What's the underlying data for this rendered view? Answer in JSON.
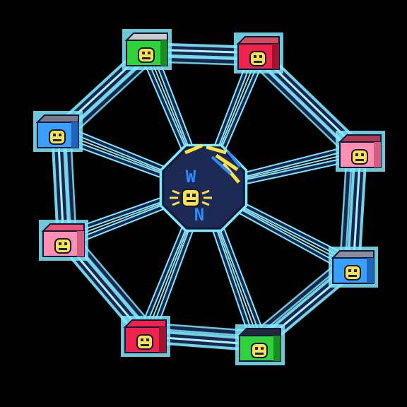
{
  "game": {
    "title": "",
    "hub": {
      "letters": [
        "W",
        "N"
      ],
      "hub_color": "#1c2a55",
      "letter_color": "#2f8cff",
      "accent_color": "#ffe14a",
      "glow_color": "#7feaff"
    },
    "palette": {
      "background": "#000000",
      "frame_glow": "#7feaff",
      "frame_core": "#1a2550",
      "spoke_light": "#aef4ff",
      "outline": "#0f1838"
    },
    "gondolas": [
      {
        "id": "gondola-top-left",
        "color": "#2fd23a",
        "shade": "#1a8c24",
        "top": "#c9c9c9"
      },
      {
        "id": "gondola-top-right",
        "color": "#f0234d",
        "shade": "#a0142f",
        "top": "#d64b5a"
      },
      {
        "id": "gondola-right-upper",
        "color": "#ff8fb0",
        "shade": "#d45c82",
        "top": "#b03a58"
      },
      {
        "id": "gondola-right-lower",
        "color": "#3aa0ff",
        "shade": "#1f64b8",
        "top": "#8c8ca0"
      },
      {
        "id": "gondola-bottom-right",
        "color": "#2fd23a",
        "shade": "#1a8c24",
        "top": "#1e2a3c"
      },
      {
        "id": "gondola-bottom-left",
        "color": "#f0234d",
        "shade": "#a0142f",
        "top": "#f0234d"
      },
      {
        "id": "gondola-left-lower",
        "color": "#ff8fb0",
        "shade": "#d45c82",
        "top": "#e8557a"
      },
      {
        "id": "gondola-left-upper",
        "color": "#3aa0ff",
        "shade": "#1f64b8",
        "top": "#7a7a8a"
      }
    ],
    "rider": {
      "face_color": "#ffe14a",
      "eye_color": "#1a2550"
    }
  }
}
